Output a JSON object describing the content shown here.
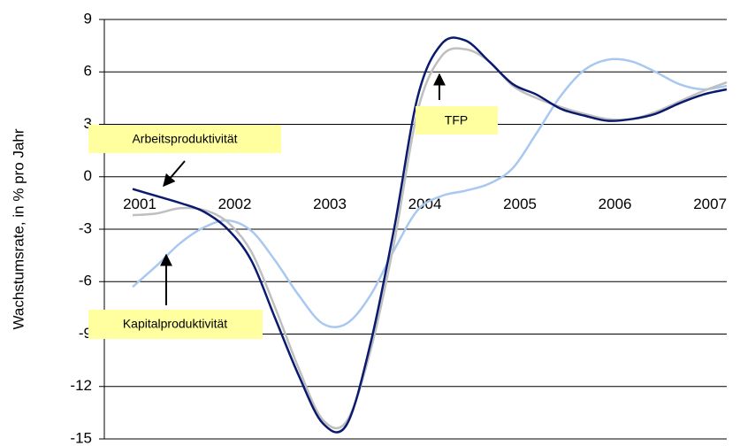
{
  "chart_data": {
    "type": "line",
    "y_label": "Wachstumsrate, in % pro Jahr",
    "categories": [
      "2001",
      null,
      null,
      null,
      "2002",
      null,
      null,
      null,
      "2003",
      null,
      null,
      null,
      "2004",
      null,
      null,
      null,
      "2005",
      null,
      null,
      null,
      "2006",
      null,
      null,
      null,
      "2007",
      null
    ],
    "series": [
      {
        "color": "#a9c8f0",
        "values": [
          -6.3,
          -5.1,
          -3.8,
          -2.9,
          -2.5,
          -3.1,
          -4.8,
          -6.8,
          -8.4,
          -8.4,
          -6.8,
          -4.2,
          -1.9,
          -1.1,
          -0.8,
          -0.4,
          0.5,
          2.5,
          4.6,
          6.1,
          6.7,
          6.6,
          6.0,
          5.3,
          5.0,
          5.2
        ]
      },
      {
        "color": "#bfbfbf",
        "values": [
          -2.2,
          -2.1,
          -1.8,
          -1.9,
          -2.6,
          -4.3,
          -7.5,
          -11.0,
          -13.9,
          -14.0,
          -10.0,
          -3.8,
          3.8,
          6.9,
          7.3,
          6.6,
          5.2,
          4.5,
          4.0,
          3.6,
          3.3,
          3.3,
          3.7,
          4.3,
          4.9,
          5.4
        ]
      },
      {
        "color": "#0a1a6e",
        "values": [
          -0.7,
          -1.1,
          -1.5,
          -2.0,
          -3.0,
          -4.8,
          -8.1,
          -11.4,
          -14.1,
          -14.2,
          -9.6,
          -3.0,
          4.6,
          7.6,
          7.8,
          6.6,
          5.3,
          4.7,
          3.9,
          3.5,
          3.2,
          3.3,
          3.6,
          4.2,
          4.7,
          5.0
        ]
      }
    ],
    "ylim": [
      -15,
      9
    ],
    "yticks": [
      -15,
      -12,
      -9,
      -6,
      -3,
      0,
      3,
      6,
      9
    ],
    "grid": true,
    "annotations": [
      {
        "text": "Arbeitsproduktivität"
      },
      {
        "text": "Kapitalproduktivität"
      },
      {
        "text": "TFP"
      }
    ]
  }
}
